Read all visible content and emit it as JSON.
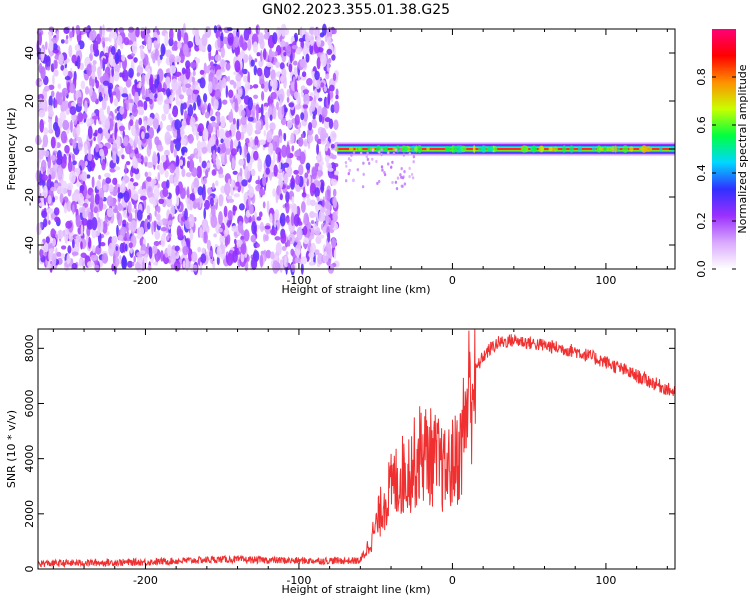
{
  "title": "GN02.2023.355.01.38.G25",
  "chart_data": [
    {
      "type": "heatmap",
      "xlabel": "Height of straight line (km)",
      "ylabel": "Frequency (Hz)",
      "xlim": [
        -270,
        145
      ],
      "ylim": [
        -50,
        50
      ],
      "xticks": [
        -200,
        -100,
        0,
        100
      ],
      "yticks": [
        -40,
        -20,
        0,
        20,
        40
      ],
      "colorbar": {
        "label": "Normalized spectral amplitude",
        "range": [
          0,
          1
        ],
        "ticks": [
          "0.0",
          "0.2",
          "0.4",
          "0.6",
          "0.8"
        ],
        "colors": [
          "#ffffff",
          "#d9a8ff",
          "#9b30ff",
          "#3030ff",
          "#00d8ff",
          "#00ff40",
          "#c8ff00",
          "#ff9000",
          "#ff0000",
          "#ff0078"
        ]
      },
      "regions": [
        {
          "x_range": [
            -270,
            -75
          ],
          "freq_range": [
            -50,
            50
          ],
          "description_level": "noise",
          "amplitude": [
            0.05,
            0.3
          ]
        },
        {
          "x_range": [
            -75,
            145
          ],
          "center_freq": 0,
          "amplitude_center": 0.95,
          "amplitude_edge": 0.3
        }
      ]
    },
    {
      "type": "line",
      "xlabel": "Height of straight line (km)",
      "ylabel": "SNR (10 * v/v)",
      "xlim": [
        -270,
        145
      ],
      "ylim": [
        0,
        8700
      ],
      "xticks": [
        -200,
        -100,
        0,
        100
      ],
      "yticks": [
        0,
        2000,
        4000,
        6000,
        8000
      ],
      "series": [
        {
          "color": "#f03030",
          "x": [
            -270,
            -200,
            -150,
            -100,
            -60,
            -55,
            -50,
            -45,
            -40,
            -35,
            -30,
            -25,
            -20,
            -15,
            -10,
            -5,
            0,
            5,
            10,
            15,
            20,
            25,
            30,
            40,
            50,
            60,
            80,
            100,
            120,
            145
          ],
          "y": [
            200,
            250,
            350,
            300,
            300,
            800,
            1500,
            2400,
            2900,
            3300,
            3500,
            3800,
            4300,
            4100,
            3900,
            3500,
            3800,
            4200,
            6200,
            7200,
            7700,
            8000,
            8200,
            8300,
            8200,
            8100,
            7900,
            7500,
            7000,
            6400
          ]
        }
      ]
    }
  ]
}
